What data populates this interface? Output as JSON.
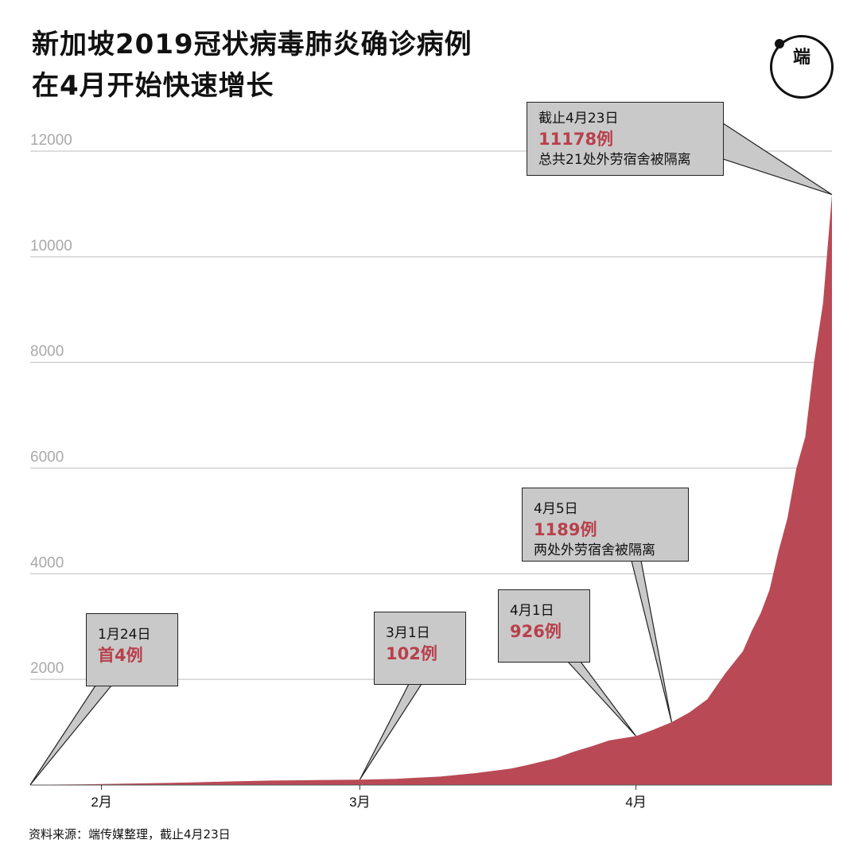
{
  "title_lines": [
    "新加坡2019冠状病毒肺炎确诊病例",
    "在4月开始快速增长"
  ],
  "logo": {
    "icon": "initium-media-logo-icon",
    "text": "端"
  },
  "source": "资料来源：端传媒整理，截止4月23日",
  "colors": {
    "fill": "#b94a55",
    "grid": "#bdbdbd",
    "callout_bg": "#c9c9c9",
    "highlight": "#b8404c"
  },
  "annotations": [
    {
      "date": "1月24日",
      "value": "首4例",
      "note": ""
    },
    {
      "date": "3月1日",
      "value": "102例",
      "note": ""
    },
    {
      "date": "4月1日",
      "value": "926例",
      "note": ""
    },
    {
      "date": "4月5日",
      "value": "1189例",
      "note": "两处外劳宿舍被隔离"
    },
    {
      "date": "截止4月23日",
      "value": "11178例",
      "note": "总共21处外劳宿舍被隔离"
    }
  ],
  "chart_data": {
    "type": "area",
    "title": "新加坡2019冠状病毒肺炎确诊病例在4月开始快速增长",
    "xlabel": "",
    "ylabel": "",
    "x_tick_labels": [
      "2月",
      "3月",
      "4月"
    ],
    "y_ticks": [
      2000,
      4000,
      6000,
      8000,
      10000,
      12000
    ],
    "ylim": [
      0,
      12000
    ],
    "grid": true,
    "x": [
      "1-24",
      "1-30",
      "2-1",
      "2-5",
      "2-10",
      "2-15",
      "2-20",
      "2-25",
      "3-1",
      "3-5",
      "3-10",
      "3-14",
      "3-18",
      "3-20",
      "3-23",
      "3-25",
      "3-27",
      "3-29",
      "4-1",
      "4-3",
      "4-5",
      "4-7",
      "4-9",
      "4-11",
      "4-13",
      "4-14",
      "4-15",
      "4-16",
      "4-17",
      "4-18",
      "4-19",
      "4-20",
      "4-21",
      "4-22",
      "4-23"
    ],
    "values": [
      4,
      13,
      18,
      30,
      45,
      67,
      85,
      93,
      102,
      117,
      160,
      226,
      313,
      385,
      509,
      631,
      732,
      844,
      926,
      1049,
      1189,
      1375,
      1623,
      2108,
      2532,
      2918,
      3252,
      3699,
      4427,
      5050,
      5992,
      6588,
      8014,
      9125,
      11178
    ]
  }
}
